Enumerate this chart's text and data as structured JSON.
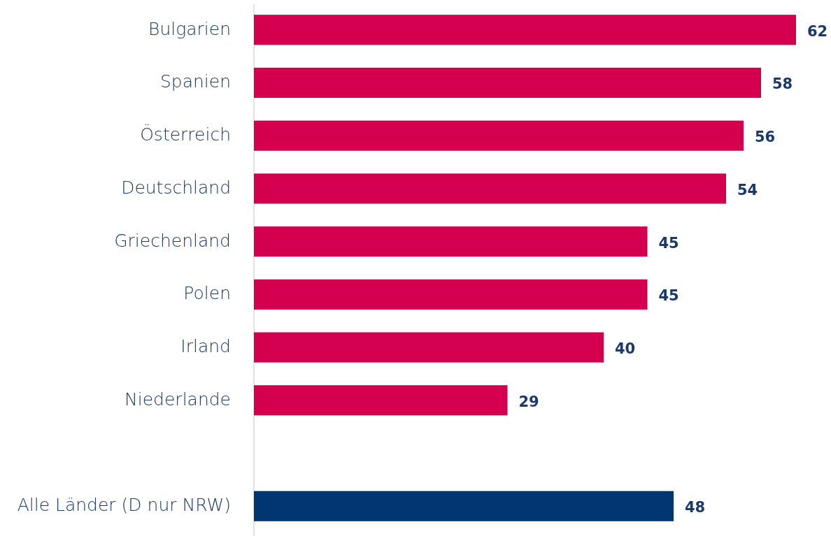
{
  "chart_data": {
    "type": "bar",
    "orientation": "horizontal",
    "categories": [
      "Bulgarien",
      "Spanien",
      "Österreich",
      "Deutschland",
      "Griechenland",
      "Polen",
      "Irland",
      "Niederlande",
      null,
      "Alle Länder (D nur NRW)"
    ],
    "values": [
      62,
      58,
      56,
      54,
      45,
      45,
      40,
      29,
      null,
      48
    ],
    "colors": [
      "#d4004f",
      "#d4004f",
      "#d4004f",
      "#d4004f",
      "#d4004f",
      "#d4004f",
      "#d4004f",
      "#d4004f",
      null,
      "#003672"
    ],
    "data_labels": true
  }
}
